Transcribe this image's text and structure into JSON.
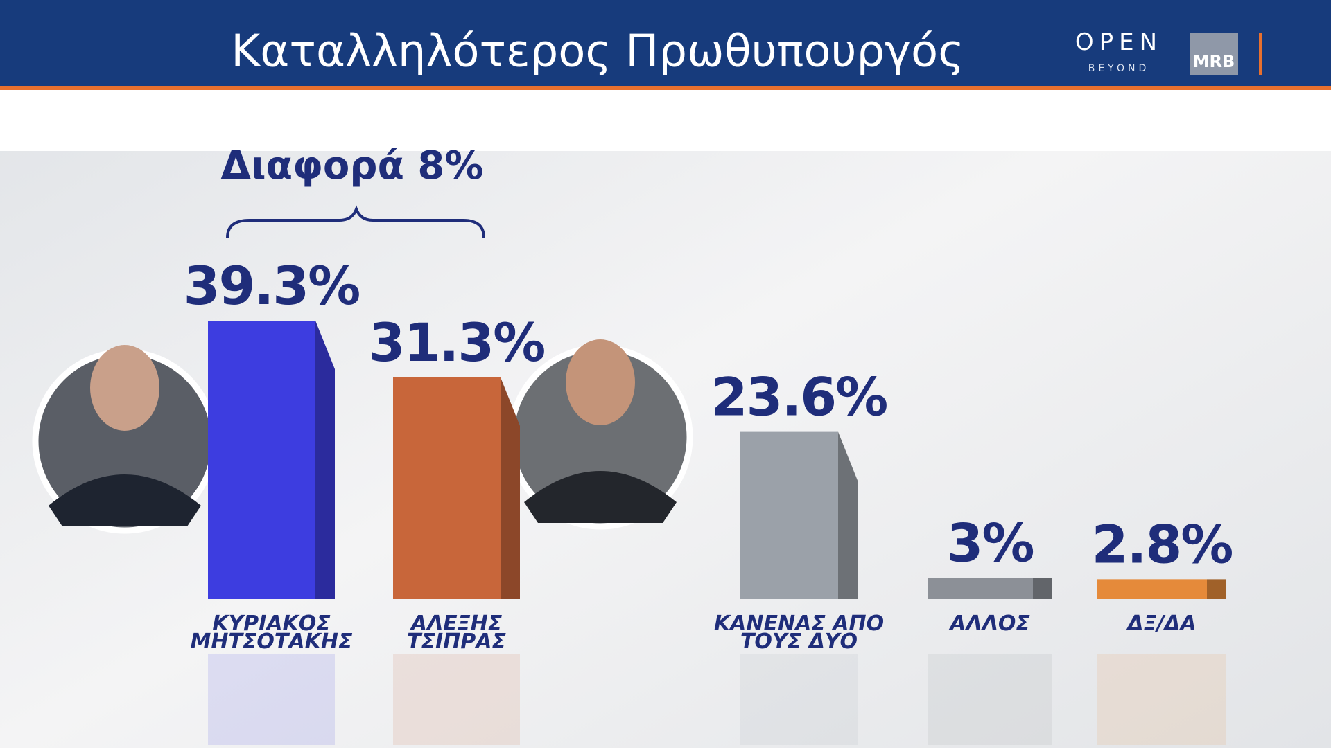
{
  "header": {
    "logo": "OPEN",
    "logo_sub": "BEYOND",
    "logo2": "MRB"
  },
  "chart_data": {
    "type": "bar",
    "title": "Καταλληλότερος Πρωθυπουργός",
    "annotation": "Διαφορά 8%",
    "categories": [
      "ΚΥΡΙΑΚΟΣ\nΜΗΤΣΟΤΑΚΗΣ",
      "ΑΛΕΞΗΣ\nΤΣΙΠΡΑΣ",
      "ΚΑΝΕΝΑΣ ΑΠΟ\nΤΟΥΣ ΔΥΟ",
      "ΑΛΛΟΣ",
      "ΔΞ/ΔΑ"
    ],
    "values": [
      39.3,
      31.3,
      23.6,
      3,
      2.8
    ],
    "value_labels": [
      "39.3%",
      "31.3%",
      "23.6%",
      "3%",
      "2.8%"
    ],
    "colors": [
      "#3d3de0",
      "#c8663a",
      "#9ba1a9",
      "#8c9097",
      "#e58a3a"
    ]
  }
}
